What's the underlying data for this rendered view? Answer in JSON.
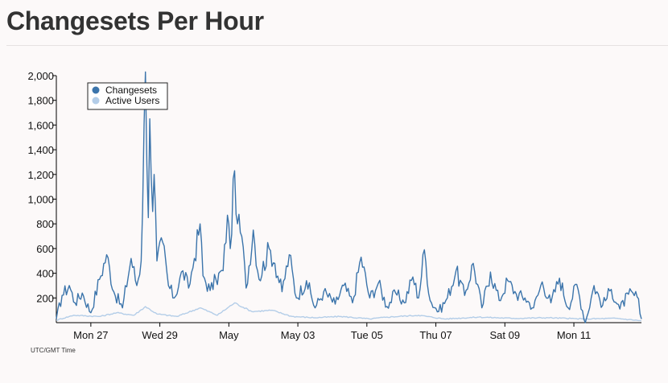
{
  "page": {
    "title": "Changesets Per Hour",
    "timezone_note": "UTC/GMT Time"
  },
  "chart_data": {
    "type": "line",
    "title": "",
    "xlabel": "",
    "ylabel": "",
    "x_axis_kind": "time (hourly, UTC)",
    "x_range": [
      "2013-04-26 00:00",
      "2013-05-12 23:00"
    ],
    "x_tick_labels": [
      "Mon 27",
      "Wed 29",
      "May",
      "May 03",
      "Tue 05",
      "Thu 07",
      "Sat 09",
      "Mon 11"
    ],
    "ylim": [
      0,
      2000
    ],
    "y_tick_labels": [
      "200",
      "400",
      "600",
      "800",
      "1,000",
      "1,200",
      "1,400",
      "1,600",
      "1,800",
      "2,000"
    ],
    "grid": false,
    "legend_position": "top-left",
    "colors": {
      "changesets": "#3b74ab",
      "active_users": "#b3cde8"
    },
    "series": [
      {
        "name": "Changesets",
        "keyframes": [
          [
            "2013-04-26 00:00",
            30
          ],
          [
            "2013-04-26 04:00",
            220
          ],
          [
            "2013-04-26 09:00",
            300
          ],
          [
            "2013-04-26 13:00",
            160
          ],
          [
            "2013-04-26 18:00",
            240
          ],
          [
            "2013-04-27 00:00",
            80
          ],
          [
            "2013-04-27 06:00",
            350
          ],
          [
            "2013-04-27 11:00",
            550
          ],
          [
            "2013-04-27 16:00",
            250
          ],
          [
            "2013-04-27 22:00",
            120
          ],
          [
            "2013-04-28 04:00",
            520
          ],
          [
            "2013-04-28 08:00",
            300
          ],
          [
            "2013-04-28 11:00",
            500
          ],
          [
            "2013-04-28 14:00",
            2030
          ],
          [
            "2013-04-28 16:00",
            850
          ],
          [
            "2013-04-28 17:00",
            1650
          ],
          [
            "2013-04-28 19:00",
            900
          ],
          [
            "2013-04-28 20:00",
            1200
          ],
          [
            "2013-04-28 22:00",
            500
          ],
          [
            "2013-04-29 02:00",
            650
          ],
          [
            "2013-04-29 06:00",
            300
          ],
          [
            "2013-04-29 10:00",
            200
          ],
          [
            "2013-04-29 16:00",
            420
          ],
          [
            "2013-04-29 20:00",
            280
          ],
          [
            "2013-04-30 00:00",
            520
          ],
          [
            "2013-04-30 04:00",
            800
          ],
          [
            "2013-04-30 06:00",
            380
          ],
          [
            "2013-04-30 11:00",
            260
          ],
          [
            "2013-04-30 15:00",
            350
          ],
          [
            "2013-04-30 20:00",
            420
          ],
          [
            "2013-04-30 23:00",
            870
          ],
          [
            "2013-05-01 01:00",
            600
          ],
          [
            "2013-05-01 04:00",
            1230
          ],
          [
            "2013-05-01 06:00",
            800
          ],
          [
            "2013-05-01 09:00",
            700
          ],
          [
            "2013-05-01 12:00",
            280
          ],
          [
            "2013-05-01 17:00",
            750
          ],
          [
            "2013-05-01 21:00",
            350
          ],
          [
            "2013-05-02 04:00",
            600
          ],
          [
            "2013-05-02 08:00",
            480
          ],
          [
            "2013-05-02 13:00",
            250
          ],
          [
            "2013-05-02 18:00",
            550
          ],
          [
            "2013-05-02 23:00",
            200
          ],
          [
            "2013-05-03 06:00",
            340
          ],
          [
            "2013-05-03 12:00",
            120
          ],
          [
            "2013-05-03 18:00",
            250
          ],
          [
            "2013-05-04 02:00",
            150
          ],
          [
            "2013-05-04 08:00",
            300
          ],
          [
            "2013-05-04 14:00",
            160
          ],
          [
            "2013-05-04 20:00",
            530
          ],
          [
            "2013-05-05 02:00",
            200
          ],
          [
            "2013-05-05 08:00",
            320
          ],
          [
            "2013-05-05 14:00",
            130
          ],
          [
            "2013-05-05 20:00",
            240
          ],
          [
            "2013-05-06 02:00",
            160
          ],
          [
            "2013-05-06 08:00",
            370
          ],
          [
            "2013-05-06 12:00",
            200
          ],
          [
            "2013-05-06 16:00",
            590
          ],
          [
            "2013-05-06 20:00",
            180
          ],
          [
            "2013-05-07 02:00",
            90
          ],
          [
            "2013-05-07 08:00",
            200
          ],
          [
            "2013-05-07 14:00",
            420
          ],
          [
            "2013-05-07 20:00",
            220
          ],
          [
            "2013-05-08 02:00",
            480
          ],
          [
            "2013-05-08 08:00",
            120
          ],
          [
            "2013-05-08 14:00",
            410
          ],
          [
            "2013-05-08 20:00",
            180
          ],
          [
            "2013-05-09 02:00",
            340
          ],
          [
            "2013-05-09 08:00",
            230
          ],
          [
            "2013-05-09 14:00",
            200
          ],
          [
            "2013-05-09 20:00",
            120
          ],
          [
            "2013-05-10 02:00",
            330
          ],
          [
            "2013-05-10 08:00",
            160
          ],
          [
            "2013-05-10 14:00",
            360
          ],
          [
            "2013-05-10 20:00",
            120
          ],
          [
            "2013-05-11 02:00",
            310
          ],
          [
            "2013-05-11 08:00",
            0
          ],
          [
            "2013-05-11 14:00",
            300
          ],
          [
            "2013-05-11 20:00",
            140
          ],
          [
            "2013-05-12 02:00",
            270
          ],
          [
            "2013-05-12 08:00",
            110
          ],
          [
            "2013-05-12 14:00",
            230
          ],
          [
            "2013-05-12 20:00",
            210
          ],
          [
            "2013-05-12 23:00",
            30
          ]
        ]
      },
      {
        "name": "Active Users",
        "keyframes": [
          [
            "2013-04-26 00:00",
            20
          ],
          [
            "2013-04-26 12:00",
            60
          ],
          [
            "2013-04-27 06:00",
            50
          ],
          [
            "2013-04-27 18:00",
            80
          ],
          [
            "2013-04-28 06:00",
            60
          ],
          [
            "2013-04-28 14:00",
            130
          ],
          [
            "2013-04-28 22:00",
            70
          ],
          [
            "2013-04-29 12:00",
            50
          ],
          [
            "2013-04-30 04:00",
            120
          ],
          [
            "2013-04-30 16:00",
            60
          ],
          [
            "2013-05-01 04:00",
            160
          ],
          [
            "2013-05-01 16:00",
            90
          ],
          [
            "2013-05-02 06:00",
            100
          ],
          [
            "2013-05-02 20:00",
            50
          ],
          [
            "2013-05-03 12:00",
            40
          ],
          [
            "2013-05-04 06:00",
            50
          ],
          [
            "2013-05-05 02:00",
            30
          ],
          [
            "2013-05-05 14:00",
            45
          ],
          [
            "2013-05-06 12:00",
            60
          ],
          [
            "2013-05-07 06:00",
            30
          ],
          [
            "2013-05-08 06:00",
            45
          ],
          [
            "2013-05-09 06:00",
            35
          ],
          [
            "2013-05-10 06:00",
            40
          ],
          [
            "2013-05-11 06:00",
            30
          ],
          [
            "2013-05-12 06:00",
            35
          ],
          [
            "2013-05-12 23:00",
            15
          ]
        ]
      }
    ]
  }
}
